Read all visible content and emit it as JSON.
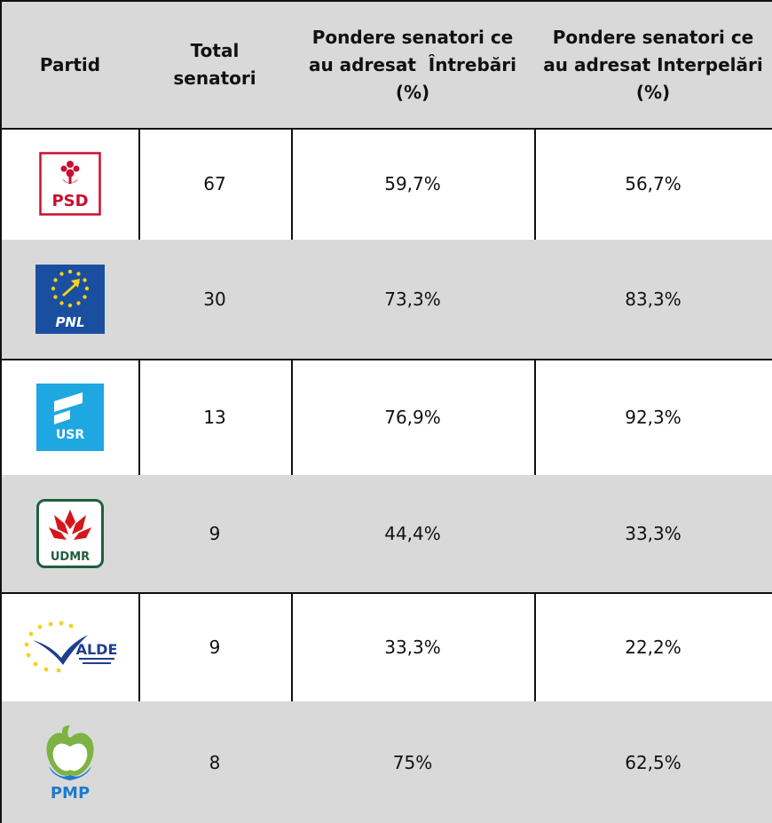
{
  "table": {
    "headers": {
      "party": "Partid",
      "total": [
        "Total",
        "senatori"
      ],
      "questions": [
        "Pondere senatori ce",
        "au adresat  Întrebări",
        "(%)"
      ],
      "interpellations": [
        "Pondere senatori ce",
        "au adresat Interpelări",
        "(%)"
      ]
    },
    "rows": [
      {
        "party": "PSD",
        "logo_icon": "psd-logo-icon",
        "total": "67",
        "questions": "59,7%",
        "interpellations": "56,7%"
      },
      {
        "party": "PNL",
        "logo_icon": "pnl-logo-icon",
        "total": "30",
        "questions": "73,3%",
        "interpellations": "83,3%"
      },
      {
        "party": "USR",
        "logo_icon": "usr-logo-icon",
        "total": "13",
        "questions": "76,9%",
        "interpellations": "92,3%"
      },
      {
        "party": "UDMR",
        "logo_icon": "udmr-logo-icon",
        "total": "9",
        "questions": "44,4%",
        "interpellations": "33,3%"
      },
      {
        "party": "ALDE",
        "logo_icon": "alde-logo-icon",
        "total": "9",
        "questions": "33,3%",
        "interpellations": "22,2%"
      },
      {
        "party": "PMP",
        "logo_icon": "pmp-logo-icon",
        "total": "8",
        "questions": "75%",
        "interpellations": "62,5%"
      }
    ]
  },
  "colors": {
    "header_bg": "#d9d9d9",
    "psd_red": "#c8102e",
    "pnl_blue": "#1a4fa0",
    "pnl_yellow": "#f7d117",
    "usr_blue": "#1ea7e1",
    "udmr_green": "#1f5f3f",
    "udmr_red": "#d4161c",
    "alde_blue": "#1f3e8c",
    "pmp_blue": "#1d7ad1",
    "pmp_green": "#7cb342"
  }
}
